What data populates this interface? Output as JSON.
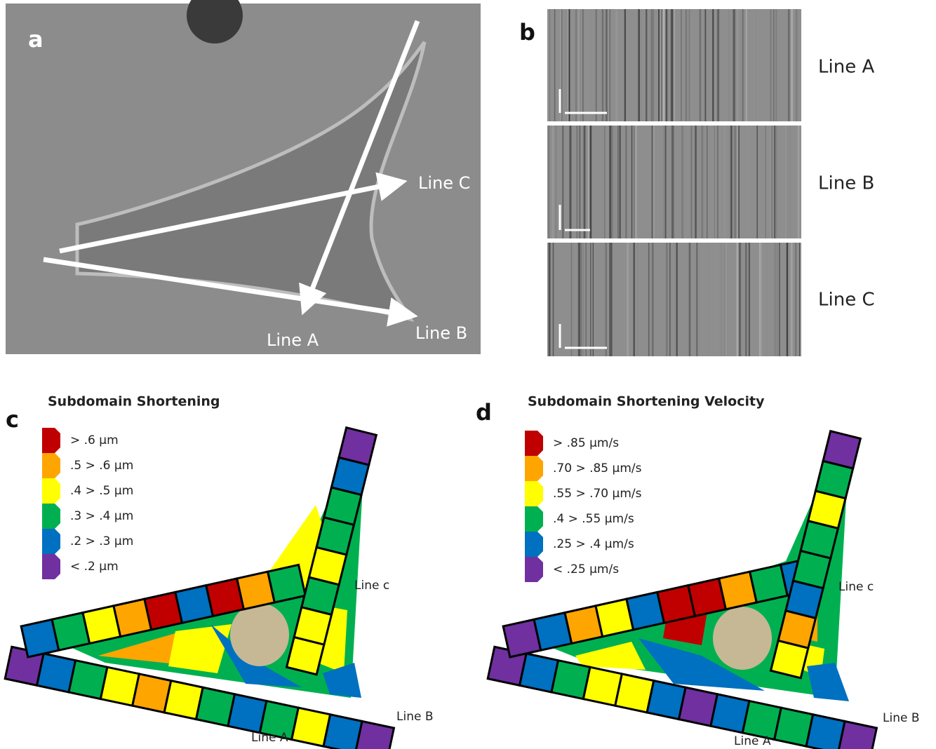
{
  "panels": [
    {
      "label": "a",
      "annotations": [
        "Line A",
        "Line B",
        "Line C"
      ]
    },
    {
      "label": "b",
      "rows": [
        "Line A",
        "Line B",
        "Line C"
      ]
    },
    {
      "label": "c",
      "title": "Subdomain  Shortening",
      "legend": [
        {
          "label": "> .6 µm",
          "color": "#c00000"
        },
        {
          "label": ".5 > .6 µm",
          "color": "#ffa500"
        },
        {
          "label": ".4 > .5 µm",
          "color": "#ffff00"
        },
        {
          "label": ".3 > .4 µm",
          "color": "#00b050"
        },
        {
          "label": ".2 > .3 µm",
          "color": "#0070c0"
        },
        {
          "label": "< .2 µm",
          "color": "#7030a0"
        }
      ],
      "line_labels": [
        "Line c",
        "Line B",
        "Line A"
      ]
    },
    {
      "label": "d",
      "title": "Subdomain  Shortening  Velocity",
      "legend": [
        {
          "label": "> .85 µm/s",
          "color": "#c00000"
        },
        {
          "label": ".70 > .85 µm/s",
          "color": "#ffa500"
        },
        {
          "label": ".55 > .70 µm/s",
          "color": "#ffff00"
        },
        {
          "label": ".4 > .55 µm/s",
          "color": "#00b050"
        },
        {
          "label": ".25 > .4 µm/s",
          "color": "#0070c0"
        },
        {
          "label": "< .25 µm/s",
          "color": "#7030a0"
        }
      ],
      "line_labels": [
        "Line c",
        "Line B",
        "Line A"
      ]
    }
  ]
}
